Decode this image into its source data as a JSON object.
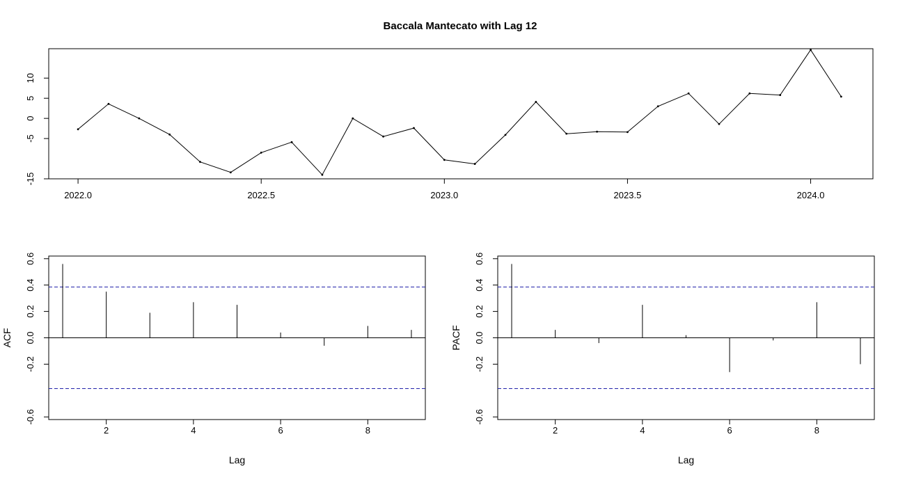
{
  "figure": {
    "title": "Baccala Mantecato with Lag 12"
  },
  "chart_data": [
    {
      "type": "line",
      "xlabel": "",
      "ylabel": "",
      "xlim": [
        2021.92,
        2024.17
      ],
      "ylim": [
        -15,
        17.3
      ],
      "xticks": [
        2022.0,
        2022.5,
        2023.0,
        2023.5,
        2024.0
      ],
      "xtick_labels": [
        "2022.0",
        "2022.5",
        "2023.0",
        "2023.5",
        "2024.0"
      ],
      "yticks": [
        -15,
        -5,
        0,
        5,
        10
      ],
      "ytick_labels": [
        "-15",
        "-5",
        "0",
        "5",
        "10"
      ],
      "x": [
        2022.0,
        2022.0833,
        2022.1667,
        2022.25,
        2022.3333,
        2022.4167,
        2022.5,
        2022.5833,
        2022.6667,
        2022.75,
        2022.8333,
        2022.9167,
        2023.0,
        2023.0833,
        2023.1667,
        2023.25,
        2023.3333,
        2023.4167,
        2023.5,
        2023.5833,
        2023.6667,
        2023.75,
        2023.8333,
        2023.9167,
        2024.0,
        2024.0833
      ],
      "y": [
        -2.7,
        3.6,
        0.0,
        -4.0,
        -10.8,
        -13.4,
        -8.5,
        -5.9,
        -14.0,
        0.0,
        -4.5,
        -2.4,
        -10.3,
        -11.3,
        -4.1,
        4.1,
        -3.8,
        -3.3,
        -3.4,
        3.0,
        6.2,
        -1.4,
        6.2,
        5.8,
        17.0,
        5.4
      ],
      "grid": false
    },
    {
      "type": "bar",
      "xlabel": "Lag",
      "ylabel": "ACF",
      "xlim": [
        0.68,
        9.32
      ],
      "ylim": [
        -0.62,
        0.62
      ],
      "xticks": [
        2,
        4,
        6,
        8
      ],
      "xtick_labels": [
        "2",
        "4",
        "6",
        "8"
      ],
      "yticks": [
        -0.6,
        -0.2,
        0.0,
        0.2,
        0.4,
        0.6
      ],
      "ytick_labels": [
        "-0.6",
        "-0.2",
        "0.0",
        "0.2",
        "0.4",
        "0.6"
      ],
      "x": [
        1,
        2,
        3,
        4,
        5,
        6,
        7,
        8,
        9
      ],
      "values": [
        0.56,
        0.35,
        0.19,
        0.27,
        0.25,
        0.04,
        -0.06,
        0.09,
        0.06
      ],
      "confidence_bounds": [
        0.385,
        -0.385
      ],
      "grid": false
    },
    {
      "type": "bar",
      "xlabel": "Lag",
      "ylabel": "PACF",
      "xlim": [
        0.68,
        9.32
      ],
      "ylim": [
        -0.62,
        0.62
      ],
      "xticks": [
        2,
        4,
        6,
        8
      ],
      "xtick_labels": [
        "2",
        "4",
        "6",
        "8"
      ],
      "yticks": [
        -0.6,
        -0.2,
        0.0,
        0.2,
        0.4,
        0.6
      ],
      "ytick_labels": [
        "-0.6",
        "-0.2",
        "0.0",
        "0.2",
        "0.4",
        "0.6"
      ],
      "x": [
        1,
        2,
        3,
        4,
        5,
        6,
        7,
        8,
        9
      ],
      "values": [
        0.56,
        0.06,
        -0.04,
        0.25,
        0.02,
        -0.26,
        -0.02,
        0.27,
        -0.2
      ],
      "confidence_bounds": [
        0.385,
        -0.385
      ],
      "grid": false
    }
  ]
}
